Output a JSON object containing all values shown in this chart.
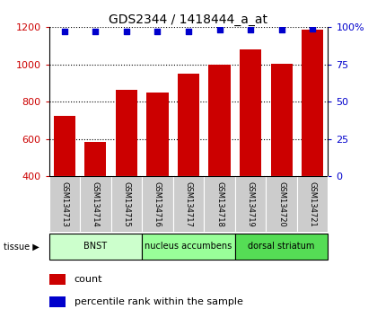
{
  "title": "GDS2344 / 1418444_a_at",
  "samples": [
    "GSM134713",
    "GSM134714",
    "GSM134715",
    "GSM134716",
    "GSM134717",
    "GSM134718",
    "GSM134719",
    "GSM134720",
    "GSM134721"
  ],
  "counts": [
    725,
    585,
    862,
    848,
    952,
    1000,
    1080,
    1005,
    1185
  ],
  "percentile_ranks": [
    97,
    97,
    97,
    97,
    97,
    98,
    98,
    98,
    99
  ],
  "tissues": [
    {
      "label": "BNST",
      "start": 0,
      "end": 3,
      "color": "#ccffcc"
    },
    {
      "label": "nucleus accumbens",
      "start": 3,
      "end": 6,
      "color": "#99ff99"
    },
    {
      "label": "dorsal striatum",
      "start": 6,
      "end": 9,
      "color": "#55dd55"
    }
  ],
  "bar_color": "#cc0000",
  "dot_color": "#0000cc",
  "ylim_left": [
    400,
    1200
  ],
  "yticks_left": [
    400,
    600,
    800,
    1000,
    1200
  ],
  "ylim_right": [
    0,
    100
  ],
  "yticks_right": [
    0,
    25,
    50,
    75,
    100
  ],
  "right_tick_labels": [
    "0",
    "25",
    "50",
    "75",
    "100%"
  ],
  "bar_width": 0.7,
  "sample_box_color": "#cccccc",
  "background_color": "#ffffff",
  "tissue_label": "tissue",
  "legend_count_label": "count",
  "legend_pct_label": "percentile rank within the sample"
}
